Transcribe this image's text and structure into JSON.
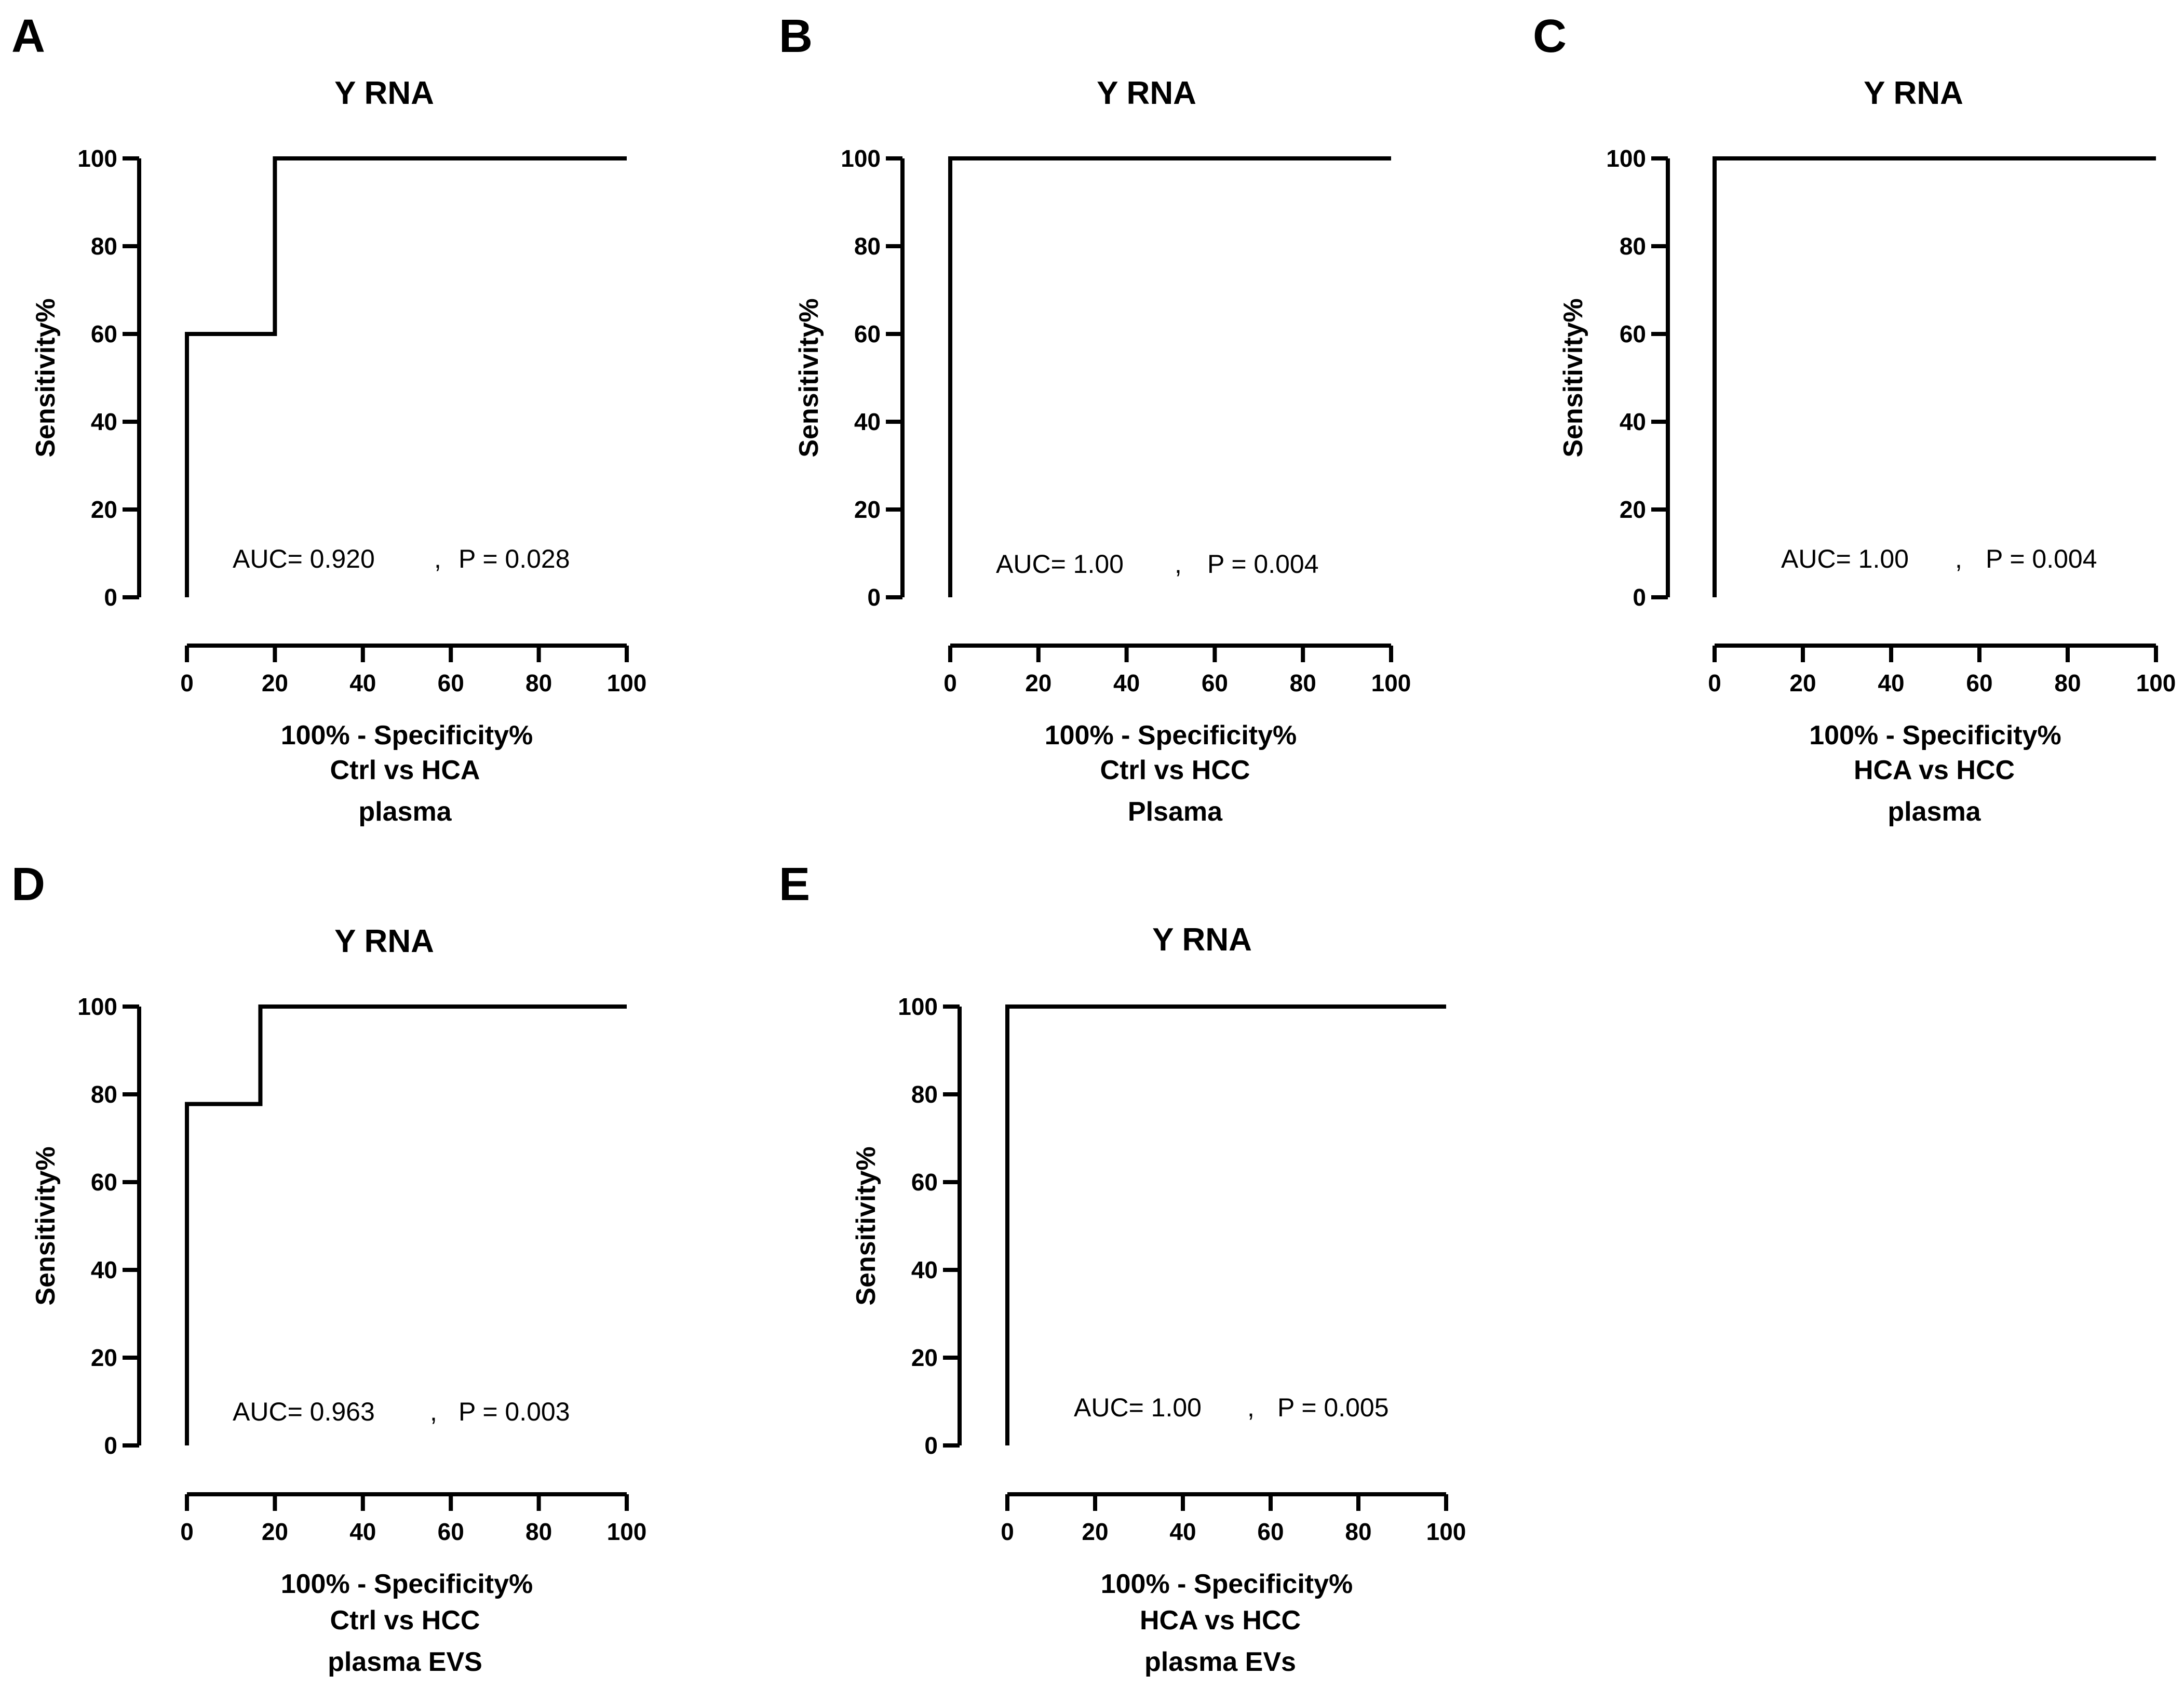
{
  "chart_data": [
    {
      "panel": "A",
      "type": "line",
      "title": "Y RNA",
      "xlabel": "100% - Specificity%",
      "ylabel": "Sensitivity%",
      "xlim": [
        0,
        100
      ],
      "ylim": [
        0,
        100
      ],
      "x_ticks": [
        "0",
        "20",
        "40",
        "60",
        "80",
        "100"
      ],
      "y_ticks": [
        "0",
        "20",
        "40",
        "60",
        "80",
        "100"
      ],
      "series": [
        {
          "x": [
            0,
            0,
            20,
            20,
            100
          ],
          "y": [
            0,
            60,
            60,
            100,
            100
          ]
        }
      ],
      "annotation": {
        "auc": "AUC= 0.920",
        "separator": ",",
        "p": "P = 0.028"
      },
      "caption": [
        "Ctrl vs HCA",
        "plasma"
      ]
    },
    {
      "panel": "B",
      "type": "line",
      "title": "Y RNA",
      "xlabel": "100% - Specificity%",
      "ylabel": "Sensitivity%",
      "xlim": [
        0,
        100
      ],
      "ylim": [
        0,
        100
      ],
      "x_ticks": [
        "0",
        "20",
        "40",
        "60",
        "80",
        "100"
      ],
      "y_ticks": [
        "0",
        "20",
        "40",
        "60",
        "80",
        "100"
      ],
      "series": [
        {
          "x": [
            0,
            0,
            100
          ],
          "y": [
            0,
            100,
            100
          ]
        }
      ],
      "annotation": {
        "auc": "AUC= 1.00",
        "separator": ",",
        "p": "P = 0.004"
      },
      "caption": [
        "Ctrl vs HCC",
        "Plsama"
      ]
    },
    {
      "panel": "C",
      "type": "line",
      "title": "Y RNA",
      "xlabel": "100% - Specificity%",
      "ylabel": "Sensitivity%",
      "xlim": [
        0,
        100
      ],
      "ylim": [
        0,
        100
      ],
      "x_ticks": [
        "0",
        "20",
        "40",
        "60",
        "80",
        "100"
      ],
      "y_ticks": [
        "0",
        "20",
        "40",
        "60",
        "80",
        "100"
      ],
      "series": [
        {
          "x": [
            0,
            0,
            100
          ],
          "y": [
            0,
            100,
            100
          ]
        }
      ],
      "annotation": {
        "auc": "AUC= 1.00",
        "separator": ",",
        "p": "P = 0.004"
      },
      "caption": [
        "HCA vs HCC",
        "plasma"
      ]
    },
    {
      "panel": "D",
      "type": "line",
      "title": "Y RNA",
      "xlabel": "100% - Specificity%",
      "ylabel": "Sensitivity%",
      "xlim": [
        0,
        100
      ],
      "ylim": [
        0,
        100
      ],
      "x_ticks": [
        "0",
        "20",
        "40",
        "60",
        "80",
        "100"
      ],
      "y_ticks": [
        "0",
        "20",
        "40",
        "60",
        "80",
        "100"
      ],
      "series": [
        {
          "x": [
            0,
            0,
            16.7,
            16.7,
            100
          ],
          "y": [
            0,
            77.8,
            77.8,
            100,
            100
          ]
        }
      ],
      "annotation": {
        "auc": "AUC= 0.963",
        "separator": ",",
        "p": "P = 0.003"
      },
      "caption": [
        "Ctrl vs HCC",
        "plasma EVS"
      ]
    },
    {
      "panel": "E",
      "type": "line",
      "title": "Y RNA",
      "xlabel": "100% - Specificity%",
      "ylabel": "Sensitivity%",
      "xlim": [
        0,
        100
      ],
      "ylim": [
        0,
        100
      ],
      "x_ticks": [
        "0",
        "20",
        "40",
        "60",
        "80",
        "100"
      ],
      "y_ticks": [
        "0",
        "20",
        "40",
        "60",
        "80",
        "100"
      ],
      "series": [
        {
          "x": [
            0,
            0,
            100
          ],
          "y": [
            0,
            100,
            100
          ]
        }
      ],
      "annotation": {
        "auc": "AUC= 1.00",
        "separator": ",",
        "p": "P = 0.005"
      },
      "caption": [
        "HCA vs HCC",
        "plasma EVs"
      ]
    }
  ]
}
